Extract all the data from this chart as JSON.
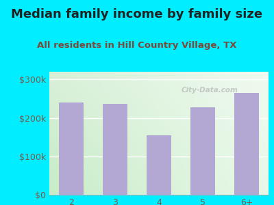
{
  "title": "Median family income by family size",
  "subtitle": "All residents in Hill Country Village, TX",
  "categories": [
    "2",
    "3",
    "4",
    "5",
    "6+"
  ],
  "values": [
    240000,
    237000,
    155000,
    228000,
    265000
  ],
  "bar_color": "#b3a8d4",
  "background_outer": "#00eeff",
  "background_inner_topleft": "#d8f0d8",
  "background_inner_topright": "#f0faf0",
  "background_inner_bottomleft": "#c8ecc8",
  "background_inner_bottomright": "#e8f8e8",
  "title_color": "#222222",
  "subtitle_color": "#7a4a3a",
  "tick_color": "#7a5a4a",
  "ytick_labels": [
    "$0",
    "$100k",
    "$200k",
    "$300k"
  ],
  "ytick_values": [
    0,
    100000,
    200000,
    300000
  ],
  "ylim": [
    0,
    320000
  ],
  "watermark": "City-Data.com",
  "title_fontsize": 13,
  "subtitle_fontsize": 9.5,
  "tick_fontsize": 9
}
